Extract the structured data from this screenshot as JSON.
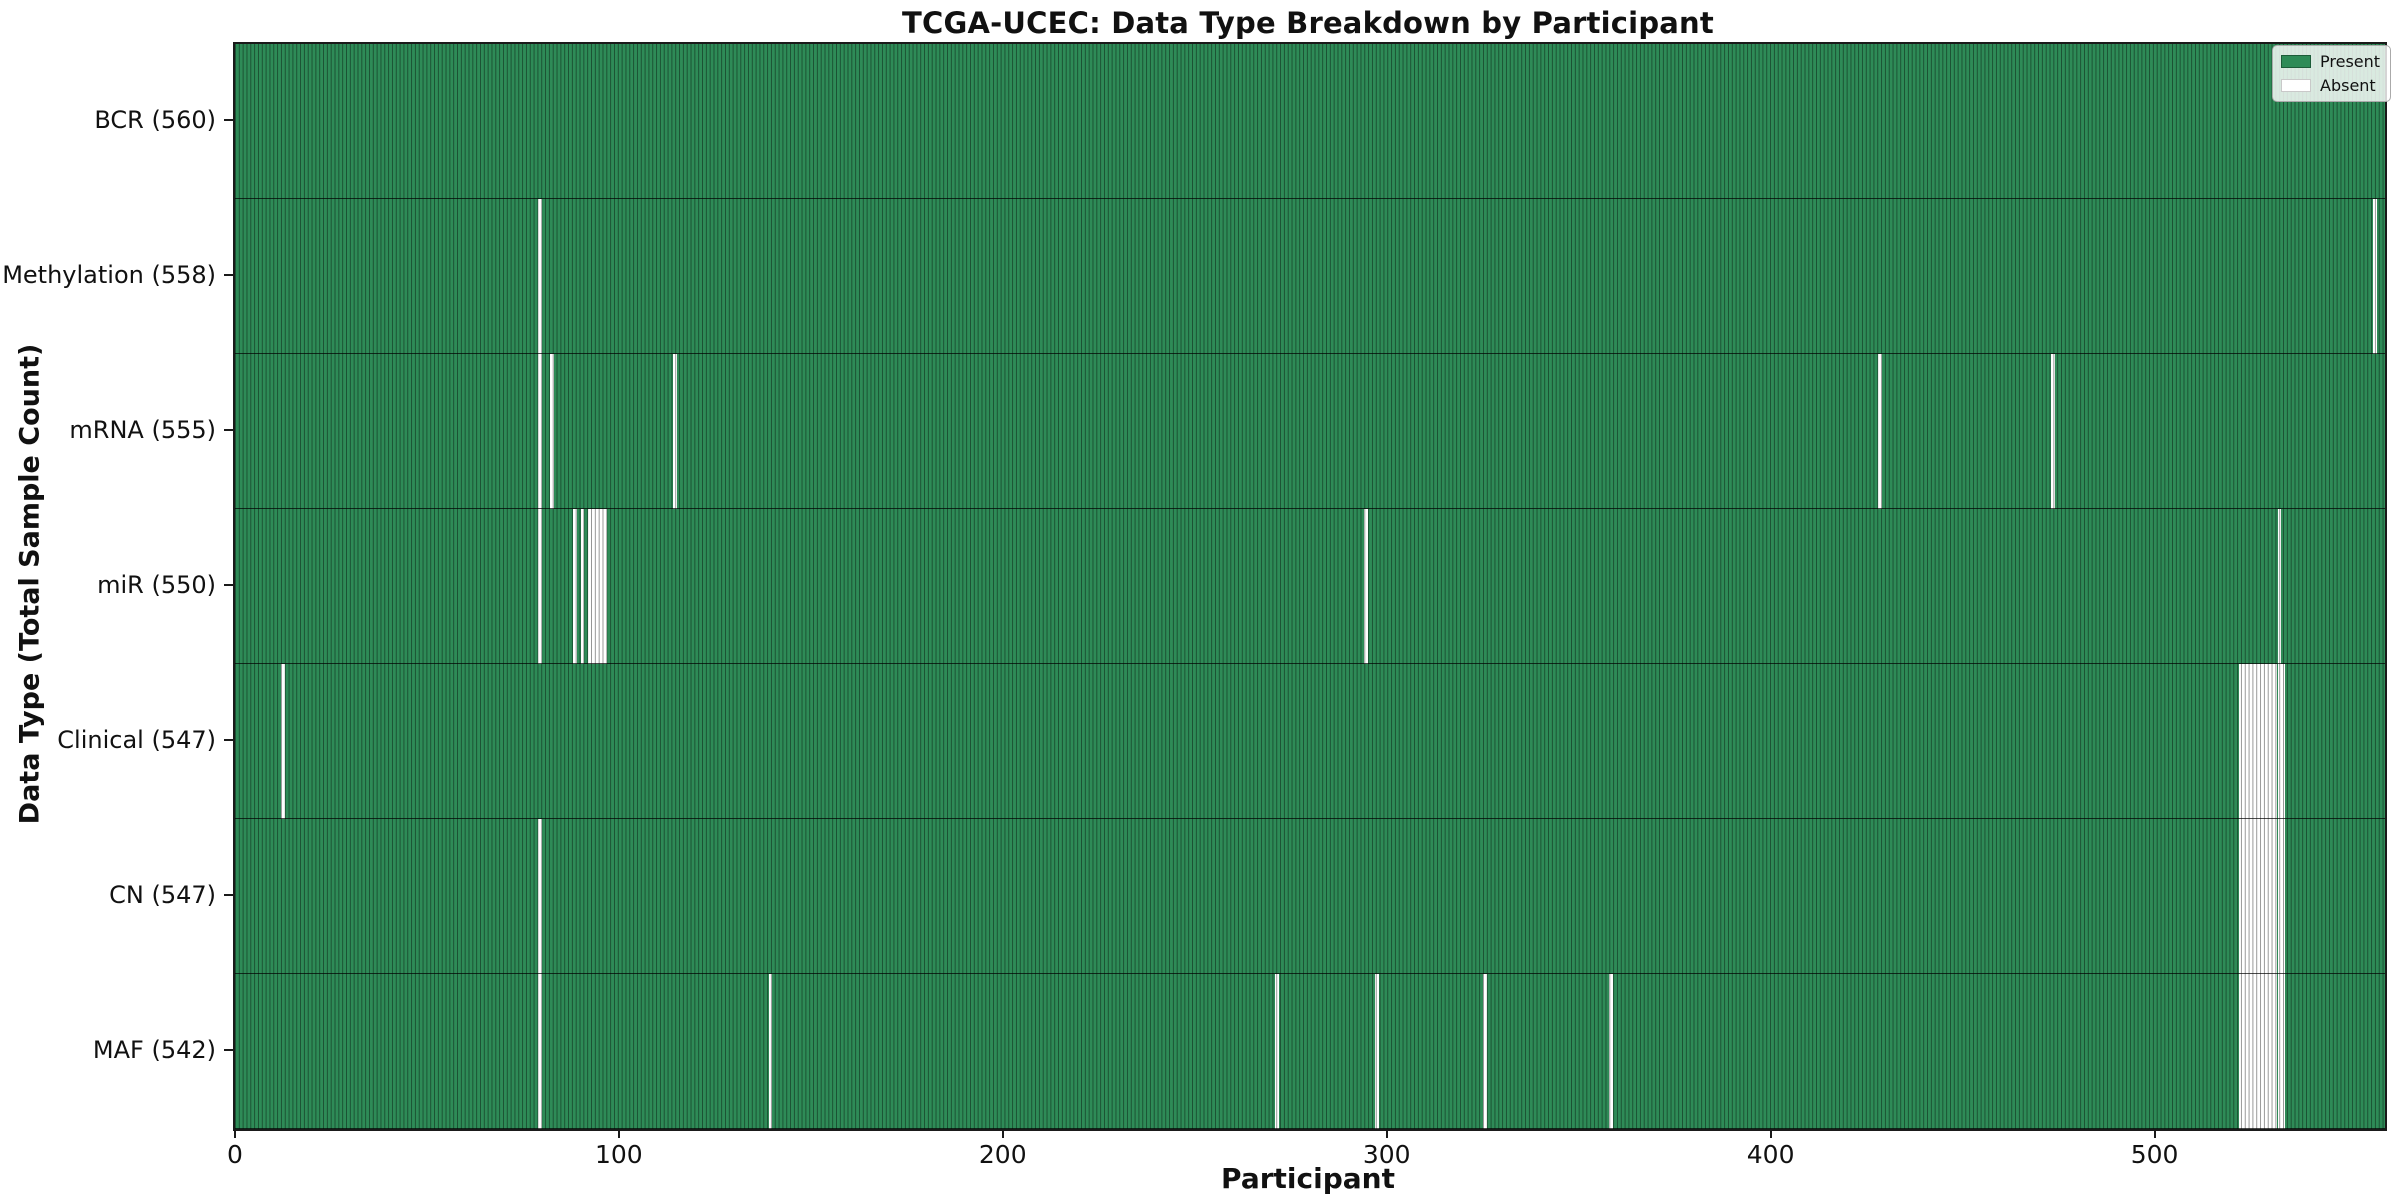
{
  "chart_data": {
    "type": "heatmap",
    "title": "TCGA-UCEC: Data Type Breakdown by Participant",
    "xlabel": "Participant",
    "ylabel": "Data Type (Total Sample Count)",
    "x_ticks": [
      0,
      100,
      200,
      300,
      400,
      500
    ],
    "n_participants": 560,
    "grid": false,
    "legend_position": "upper right",
    "legend": {
      "present_label": "Present",
      "absent_label": "Absent"
    },
    "colors": {
      "present": "#2e8b57",
      "absent": "#ffffff"
    },
    "rows": [
      {
        "label": "BCR (560)",
        "data_type": "BCR",
        "count": 560,
        "absent_participants": []
      },
      {
        "label": "Methylation (558)",
        "data_type": "Methylation",
        "count": 558,
        "absent_participants": [
          79,
          557
        ]
      },
      {
        "label": "mRNA (555)",
        "data_type": "mRNA",
        "count": 555,
        "absent_participants": [
          79,
          82,
          114,
          428,
          473
        ]
      },
      {
        "label": "miR (550)",
        "data_type": "miR",
        "count": 550,
        "absent_participants": [
          79,
          88,
          90,
          92,
          93,
          94,
          95,
          96,
          294,
          532
        ]
      },
      {
        "label": "Clinical (547)",
        "data_type": "Clinical",
        "count": 547,
        "absent_participants": [
          12,
          522,
          523,
          524,
          525,
          526,
          527,
          528,
          529,
          530,
          531,
          532,
          533
        ]
      },
      {
        "label": "CN (547)",
        "data_type": "CN",
        "count": 547,
        "absent_participants": [
          79,
          522,
          523,
          524,
          525,
          526,
          527,
          528,
          529,
          530,
          531,
          532,
          533
        ]
      },
      {
        "label": "MAF (542)",
        "data_type": "MAF",
        "count": 542,
        "absent_participants": [
          79,
          139,
          271,
          297,
          325,
          358,
          522,
          523,
          524,
          525,
          526,
          527,
          528,
          529,
          530,
          531,
          532,
          533
        ]
      }
    ]
  }
}
